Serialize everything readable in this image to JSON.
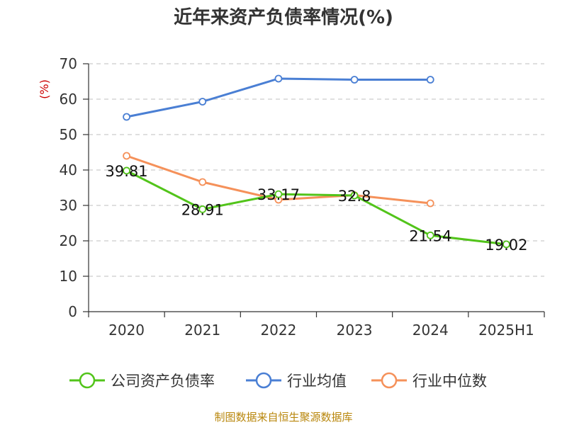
{
  "chart_data": {
    "type": "line",
    "title": "近年来资产负债率情况(%)",
    "ylabel": "(%)",
    "xlabel": "",
    "ylim": [
      0,
      70
    ],
    "yticks": [
      0,
      10,
      20,
      30,
      40,
      50,
      60,
      70
    ],
    "categories": [
      "2020",
      "2021",
      "2022",
      "2023",
      "2024",
      "2025H1"
    ],
    "grid": true,
    "legend_position": "bottom",
    "series": [
      {
        "name": "公司资产负债率",
        "color": "#52c41a",
        "values": [
          39.81,
          28.91,
          33.17,
          32.8,
          21.54,
          19.02
        ],
        "labels": [
          "39.81",
          "28.91",
          "33.17",
          "32.8",
          "21.54",
          "19.02"
        ]
      },
      {
        "name": "行业均值",
        "color": "#4a7fd4",
        "values": [
          55.0,
          59.3,
          65.8,
          65.5,
          65.5,
          null
        ]
      },
      {
        "name": "行业中位数",
        "color": "#f5915a",
        "values": [
          44.0,
          36.6,
          31.6,
          32.9,
          30.6,
          null
        ]
      }
    ]
  },
  "source": "制图数据来自恒生聚源数据库"
}
